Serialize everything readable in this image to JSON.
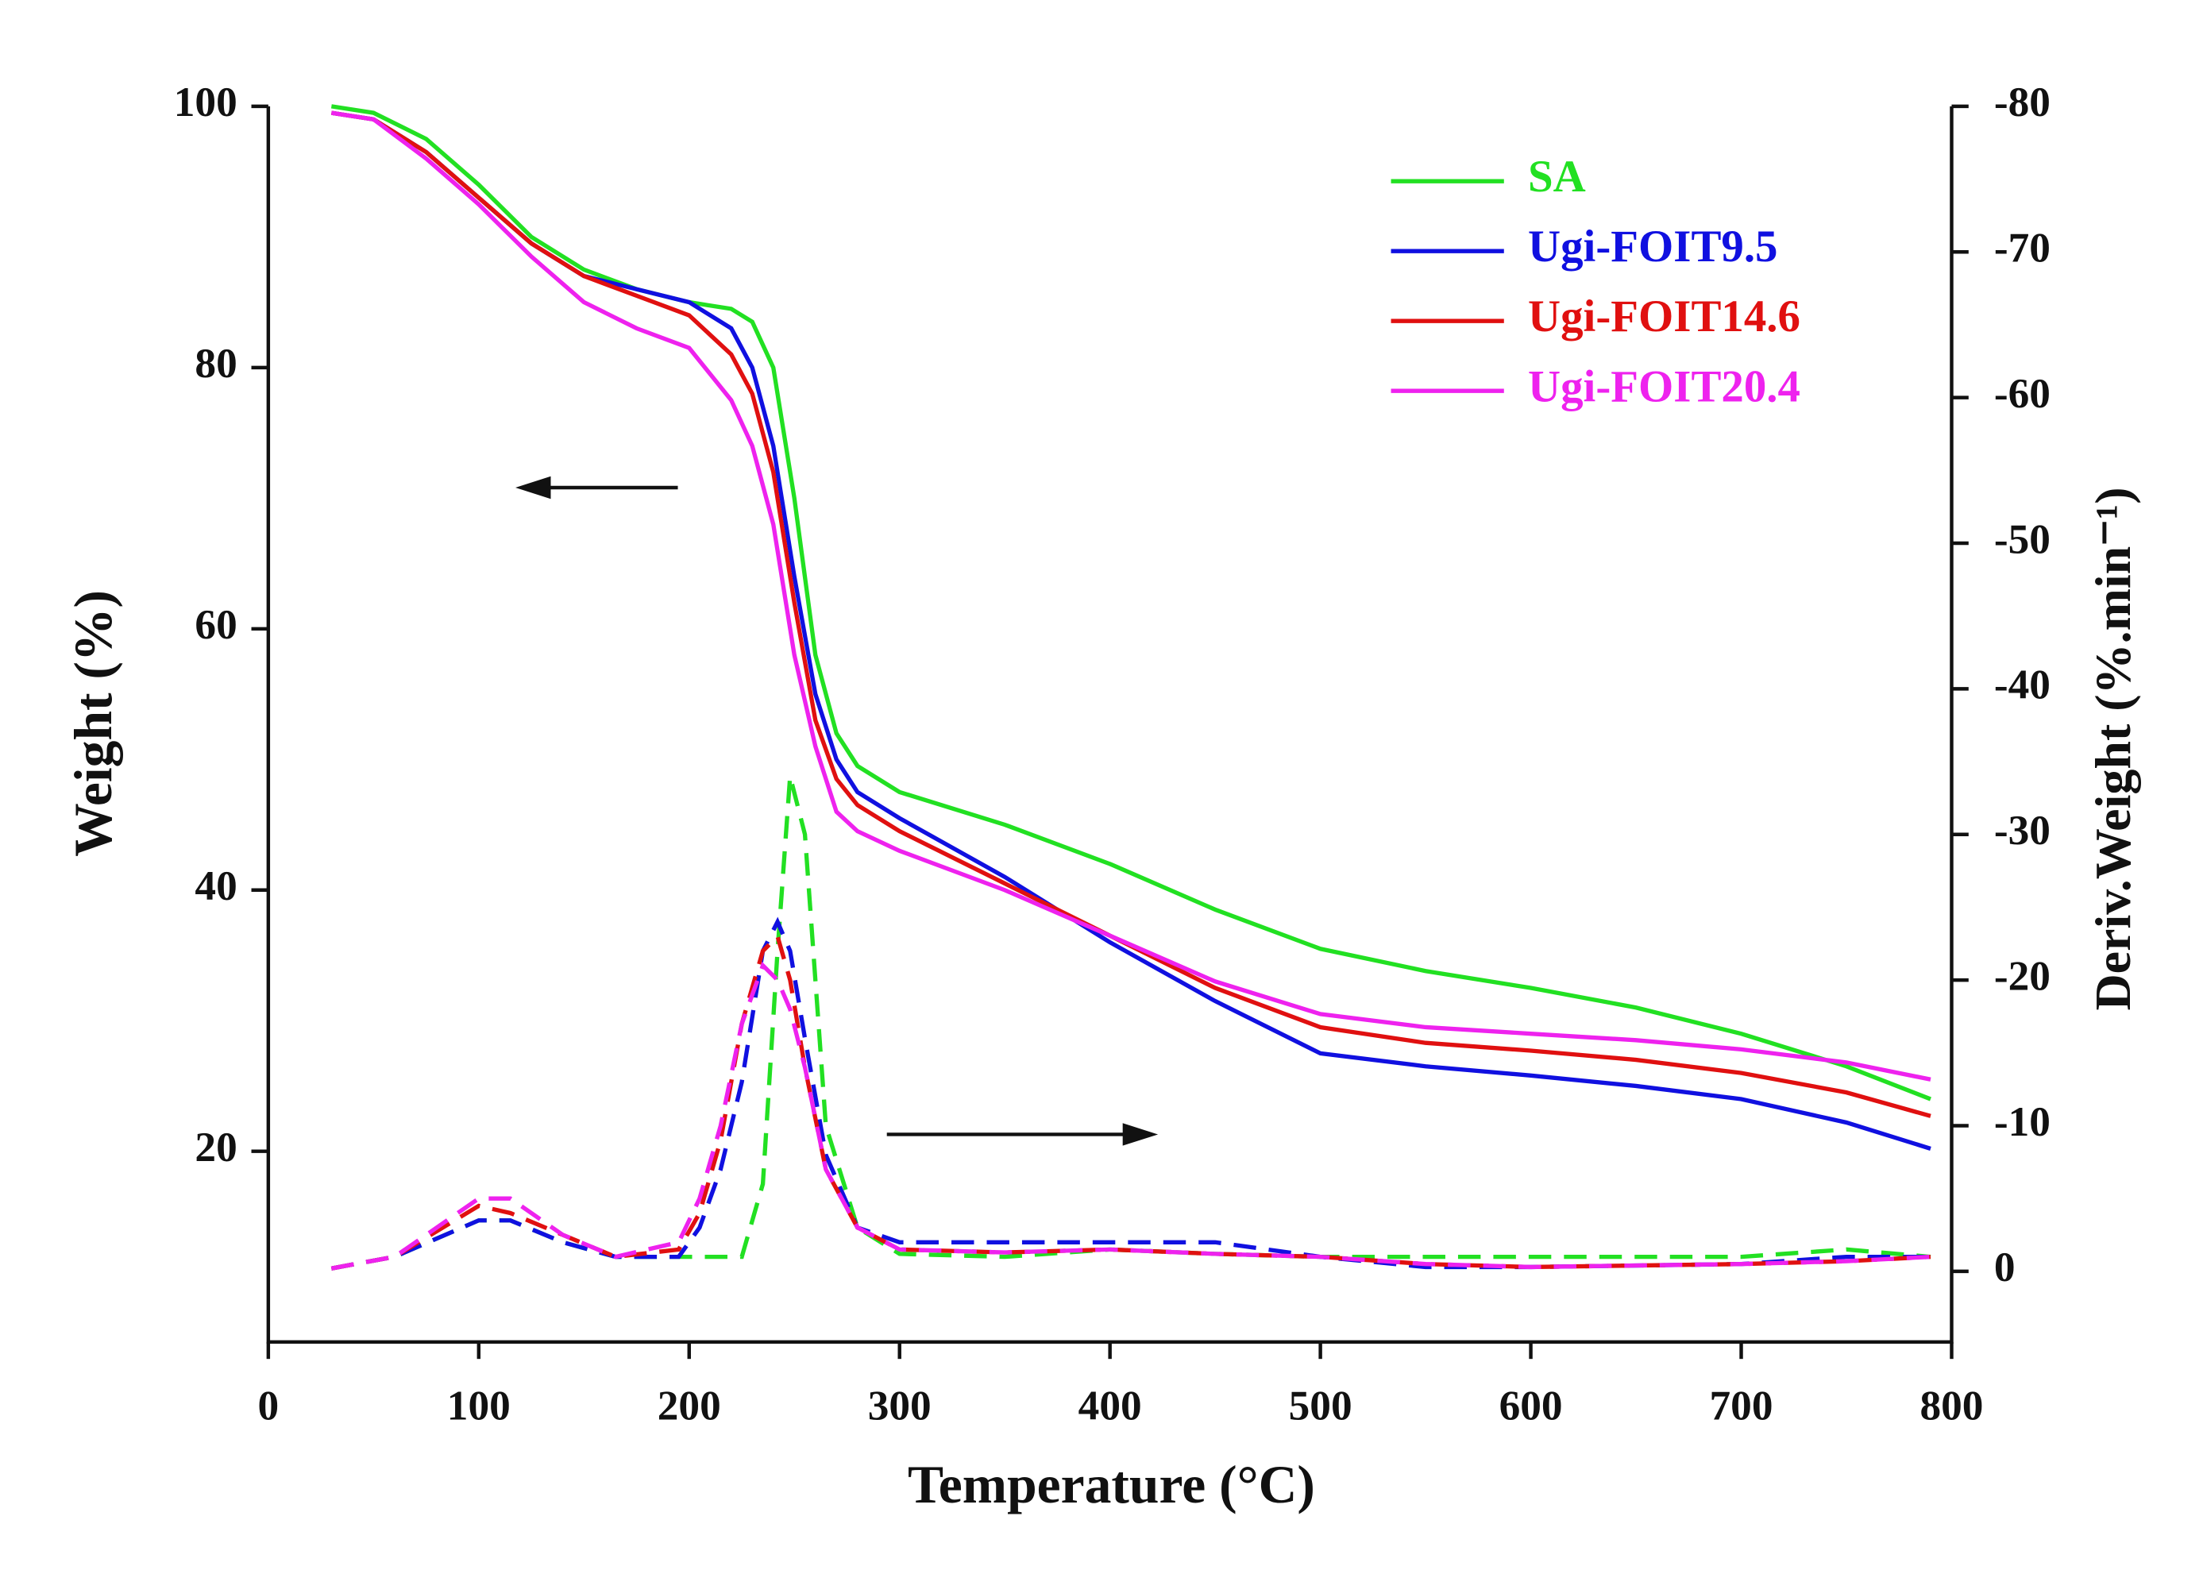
{
  "chart_data": {
    "type": "line",
    "xlabel": "Temperature (°C)",
    "ylabel": "Weight (%)",
    "y2label": "Deriv.Weight (%.min⁻¹)",
    "x": [
      30,
      50,
      75,
      100,
      125,
      150,
      175,
      200,
      220,
      230,
      240,
      250,
      260,
      270,
      280,
      300,
      350,
      400,
      450,
      500,
      550,
      600,
      650,
      700,
      750,
      790
    ],
    "xlim": [
      0,
      800
    ],
    "xticks": [
      0,
      100,
      200,
      300,
      400,
      500,
      600,
      700,
      800
    ],
    "ylim": [
      5.4,
      100
    ],
    "yticks": [
      20,
      40,
      60,
      80,
      100
    ],
    "y2lim": [
      4.85,
      -80
    ],
    "y2ticks": [
      0,
      -10,
      -20,
      -30,
      -40,
      -50,
      -60,
      -70,
      -80
    ],
    "legend": "upper right",
    "series": [
      {
        "name": "SA",
        "color": "#22e022",
        "values": [
          100,
          99.5,
          97.5,
          94,
          90,
          87.5,
          86,
          85,
          84.5,
          83.5,
          80,
          70,
          58,
          52,
          49.5,
          47.5,
          45,
          42,
          38.5,
          35.5,
          33.8,
          32.5,
          31,
          29,
          26.5,
          24
        ]
      },
      {
        "name": "Ugi-FOIT9.5",
        "color": "#1010e0",
        "values": [
          99.5,
          99,
          96.5,
          93,
          89.5,
          87,
          86,
          85,
          83,
          80,
          74,
          64,
          55,
          50,
          47.5,
          45.5,
          41,
          36,
          31.5,
          27.5,
          26.5,
          25.8,
          25,
          24,
          22.2,
          20.2
        ]
      },
      {
        "name": "Ugi-FOIT14.6",
        "color": "#e01010",
        "values": [
          99.5,
          99,
          96.5,
          93,
          89.5,
          87,
          85.5,
          84,
          81,
          78,
          72,
          62,
          53,
          48.5,
          46.5,
          44.5,
          40.5,
          36.5,
          32.5,
          29.5,
          28.3,
          27.7,
          27,
          26,
          24.5,
          22.7
        ]
      },
      {
        "name": "Ugi-FOIT20.4",
        "color": "#ee22ee",
        "values": [
          99.5,
          99,
          96,
          92.5,
          88.5,
          85,
          83,
          81.5,
          77.5,
          74,
          68,
          58,
          51,
          46,
          44.5,
          43,
          40,
          36.5,
          33,
          30.5,
          29.5,
          29,
          28.5,
          27.8,
          26.8,
          25.5
        ]
      }
    ],
    "deriv_series": [
      {
        "color": "#22e022",
        "axis": "y2",
        "x": [
          30,
          60,
          100,
          115,
          140,
          165,
          195,
          205,
          215,
          225,
          235,
          242,
          248,
          255,
          265,
          280,
          300,
          350,
          400,
          450,
          500,
          550,
          600,
          700,
          750,
          790
        ],
        "values": [
          -0.2,
          -1,
          -3.5,
          -3.5,
          -2,
          -1,
          -1,
          -1,
          -1,
          -1,
          -6,
          -22,
          -34,
          -30,
          -10,
          -3,
          -1.2,
          -1,
          -1.5,
          -1.2,
          -1,
          -1,
          -1,
          -1,
          -1.5,
          -1
        ]
      },
      {
        "color": "#1010e0",
        "axis": "y2",
        "x": [
          30,
          60,
          100,
          115,
          140,
          165,
          195,
          205,
          215,
          225,
          235,
          242,
          248,
          255,
          265,
          280,
          300,
          350,
          400,
          450,
          500,
          550,
          600,
          700,
          750,
          790
        ],
        "values": [
          -0.2,
          -1,
          -3.5,
          -3.5,
          -2,
          -1,
          -1,
          -3,
          -7,
          -13,
          -22,
          -24,
          -22,
          -16,
          -8,
          -3,
          -2,
          -2,
          -2,
          -2,
          -1,
          -0.3,
          -0.3,
          -0.5,
          -1,
          -1
        ]
      },
      {
        "color": "#e01010",
        "axis": "y2",
        "x": [
          30,
          60,
          100,
          115,
          140,
          165,
          195,
          205,
          215,
          225,
          235,
          242,
          248,
          255,
          265,
          280,
          300,
          350,
          400,
          450,
          500,
          550,
          600,
          700,
          750,
          790
        ],
        "values": [
          -0.2,
          -1,
          -4.5,
          -4,
          -2.5,
          -1,
          -1.5,
          -4,
          -9,
          -17,
          -22,
          -23,
          -20,
          -14,
          -7,
          -3,
          -1.5,
          -1.3,
          -1.5,
          -1.2,
          -1,
          -0.5,
          -0.3,
          -0.5,
          -0.7,
          -1
        ]
      },
      {
        "color": "#ee22ee",
        "axis": "y2",
        "x": [
          30,
          60,
          100,
          115,
          140,
          165,
          195,
          205,
          215,
          225,
          235,
          242,
          248,
          255,
          265,
          280,
          300,
          350,
          400,
          450,
          500,
          550,
          600,
          700,
          750,
          790
        ],
        "values": [
          -0.2,
          -1,
          -5,
          -5,
          -2.5,
          -1,
          -2,
          -5,
          -10,
          -17,
          -21,
          -20,
          -18,
          -14,
          -7,
          -3,
          -1.5,
          -1.3,
          -1.5,
          -1.2,
          -1,
          -0.5,
          -0.3,
          -0.5,
          -0.7,
          -1
        ]
      }
    ]
  }
}
